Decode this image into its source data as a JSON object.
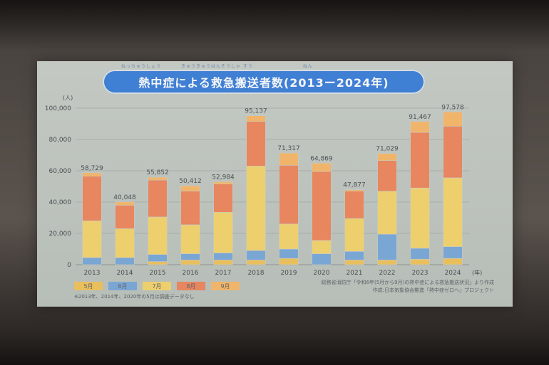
{
  "chart_data": {
    "type": "bar",
    "stacked": true,
    "title": "熱中症による救急搬送者数(2013ー2024年)",
    "title_ruby": "ねっちゅうしょう　　　　きゅうきゅうはんそうしゃ すう　　　　　　　　　　ねん",
    "ylabel": "(人)",
    "xlabel": "(年)",
    "ylim": [
      0,
      100000
    ],
    "yticks": [
      0,
      20000,
      40000,
      60000,
      80000,
      100000
    ],
    "ytick_labels": [
      "0",
      "20,000",
      "40,000",
      "60,000",
      "80,000",
      "100,000"
    ],
    "categories": [
      "2013",
      "2014",
      "2015",
      "2016",
      "2017",
      "2018",
      "2019",
      "2020",
      "2021",
      "2022",
      "2023",
      "2024"
    ],
    "total_labels": [
      "58,729",
      "40,048",
      "55,852",
      "50,412",
      "52,984",
      "95,137",
      "71,317",
      "64,869",
      "47,877",
      "71,029",
      "91,467",
      "97,578"
    ],
    "totals": [
      58729,
      40048,
      55852,
      50412,
      52984,
      95137,
      71317,
      64869,
      47877,
      71029,
      91467,
      97578
    ],
    "series": [
      {
        "name": "5月",
        "color": "#e9bf5e",
        "values": [
          0,
          0,
          2000,
          3000,
          3000,
          3000,
          4000,
          0,
          3000,
          3000,
          3500,
          4000
        ]
      },
      {
        "name": "6月",
        "color": "#7aa6d4",
        "values": [
          4500,
          4500,
          4500,
          4000,
          4500,
          6000,
          6000,
          7000,
          5500,
          16500,
          7000,
          7500
        ]
      },
      {
        "name": "7月",
        "color": "#eecf6e",
        "values": [
          23500,
          18500,
          24000,
          18500,
          26000,
          54000,
          16000,
          8500,
          21000,
          27500,
          38500,
          44000
        ]
      },
      {
        "name": "8月",
        "color": "#e7865f",
        "values": [
          28500,
          15000,
          23500,
          21500,
          18000,
          28500,
          37500,
          44000,
          17500,
          19500,
          35500,
          33000
        ]
      },
      {
        "name": "9月",
        "color": "#f0b56a",
        "values": [
          2229,
          2048,
          1852,
          3412,
          1484,
          3637,
          7817,
          5369,
          877,
          4529,
          6967,
          9078
        ]
      }
    ],
    "legend_position": "bottom-left",
    "grid": true
  },
  "note": "※2013年、2014年、2020年の5月は調査データなし",
  "source_lines": [
    "総務省消防庁「令和6年(5月から9月)の熱中症による救急搬送状況」より作成",
    "作成:日本気象協会推進「熱中症ゼロへ」プロジェクト"
  ]
}
